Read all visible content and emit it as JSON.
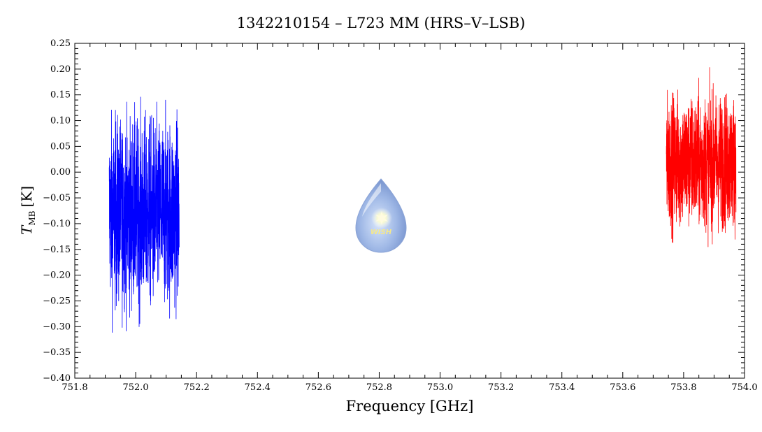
{
  "chart_data": {
    "type": "line",
    "title": "1342210154 – L723 MM (HRS–V–LSB)",
    "xlabel": "Frequency [GHz]",
    "ylabel_main": "T",
    "ylabel_sub": "MB",
    "ylabel_unit": "[K]",
    "xlim": [
      751.8,
      754.0
    ],
    "ylim": [
      -0.4,
      0.25
    ],
    "x_ticks": [
      "751.8",
      "752.0",
      "752.2",
      "752.4",
      "752.6",
      "752.8",
      "753.0",
      "753.2",
      "753.4",
      "753.6",
      "753.8",
      "754.0"
    ],
    "y_ticks": [
      "0.25",
      "0.20",
      "0.15",
      "0.10",
      "0.05",
      "0.00",
      "−0.05",
      "−0.10",
      "−0.15",
      "−0.20",
      "−0.25",
      "−0.30",
      "−0.35",
      "−0.40"
    ],
    "grid": false,
    "series": [
      {
        "color": "#0000ff",
        "x_start": 751.913,
        "x_end": 752.143,
        "center": -0.08,
        "min": -0.34,
        "max": 0.2
      },
      {
        "color": "#ff0000",
        "x_start": 753.743,
        "x_end": 753.972,
        "center": 0.02,
        "min": -0.18,
        "max": 0.22
      }
    ]
  },
  "logo": {
    "text": "WISH"
  }
}
